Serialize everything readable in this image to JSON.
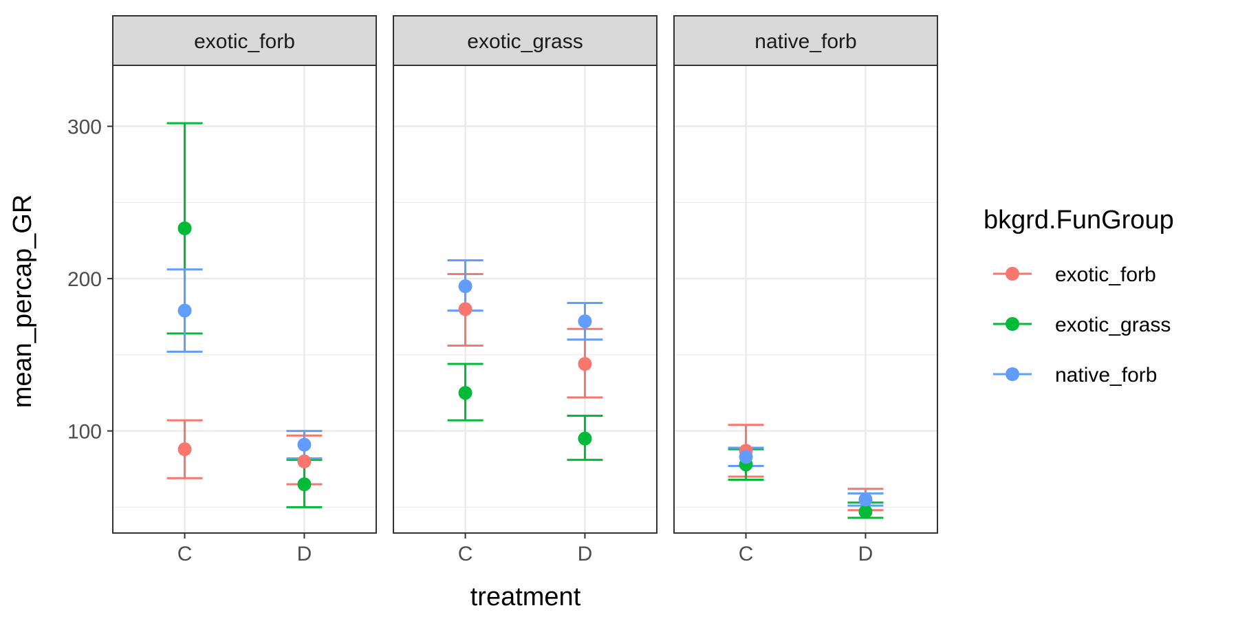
{
  "chart_data": {
    "type": "scatter",
    "geom": "point with error bars",
    "facets": [
      "exotic_forb",
      "exotic_grass",
      "native_forb"
    ],
    "x_categories": [
      "C",
      "D"
    ],
    "xlabel": "treatment",
    "ylabel": "mean_percap_GR",
    "y_ticks": [
      100,
      200,
      300
    ],
    "ylim": [
      33,
      340
    ],
    "grid": true,
    "legend": {
      "title": "bkgrd.FunGroup",
      "placement": "right",
      "entries": [
        "exotic_forb",
        "exotic_grass",
        "native_forb"
      ]
    },
    "colors": {
      "exotic_forb": "#F8766D",
      "exotic_grass": "#00BA38",
      "native_forb": "#619CFF"
    },
    "points": [
      {
        "facet": "exotic_forb",
        "treatment": "C",
        "group": "exotic_forb",
        "y": 88,
        "ymin": 69,
        "ymax": 107
      },
      {
        "facet": "exotic_forb",
        "treatment": "C",
        "group": "exotic_grass",
        "y": 233,
        "ymin": 164,
        "ymax": 302
      },
      {
        "facet": "exotic_forb",
        "treatment": "C",
        "group": "native_forb",
        "y": 179,
        "ymin": 152,
        "ymax": 206
      },
      {
        "facet": "exotic_forb",
        "treatment": "D",
        "group": "exotic_forb",
        "y": 80,
        "ymin": 65,
        "ymax": 97
      },
      {
        "facet": "exotic_forb",
        "treatment": "D",
        "group": "exotic_grass",
        "y": 65,
        "ymin": 50,
        "ymax": 81
      },
      {
        "facet": "exotic_forb",
        "treatment": "D",
        "group": "native_forb",
        "y": 91,
        "ymin": 82,
        "ymax": 100
      },
      {
        "facet": "exotic_grass",
        "treatment": "C",
        "group": "exotic_forb",
        "y": 180,
        "ymin": 156,
        "ymax": 203
      },
      {
        "facet": "exotic_grass",
        "treatment": "C",
        "group": "exotic_grass",
        "y": 125,
        "ymin": 107,
        "ymax": 144
      },
      {
        "facet": "exotic_grass",
        "treatment": "C",
        "group": "native_forb",
        "y": 195,
        "ymin": 179,
        "ymax": 212
      },
      {
        "facet": "exotic_grass",
        "treatment": "D",
        "group": "exotic_forb",
        "y": 144,
        "ymin": 122,
        "ymax": 167
      },
      {
        "facet": "exotic_grass",
        "treatment": "D",
        "group": "exotic_grass",
        "y": 95,
        "ymin": 81,
        "ymax": 110
      },
      {
        "facet": "exotic_grass",
        "treatment": "D",
        "group": "native_forb",
        "y": 172,
        "ymin": 160,
        "ymax": 184
      },
      {
        "facet": "native_forb",
        "treatment": "C",
        "group": "exotic_forb",
        "y": 87,
        "ymin": 70,
        "ymax": 104
      },
      {
        "facet": "native_forb",
        "treatment": "C",
        "group": "exotic_grass",
        "y": 78,
        "ymin": 68,
        "ymax": 88
      },
      {
        "facet": "native_forb",
        "treatment": "C",
        "group": "native_forb",
        "y": 83,
        "ymin": 77,
        "ymax": 89
      },
      {
        "facet": "native_forb",
        "treatment": "D",
        "group": "exotic_forb",
        "y": 55,
        "ymin": 48,
        "ymax": 62
      },
      {
        "facet": "native_forb",
        "treatment": "D",
        "group": "exotic_grass",
        "y": 47,
        "ymin": 43,
        "ymax": 53
      },
      {
        "facet": "native_forb",
        "treatment": "D",
        "group": "native_forb",
        "y": 55,
        "ymin": 51,
        "ymax": 59
      }
    ]
  }
}
